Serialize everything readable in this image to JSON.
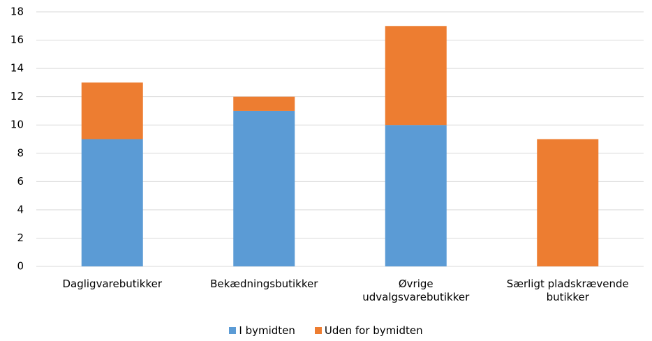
{
  "chart_data": {
    "type": "stacked_bar",
    "categories": [
      "Dagligvarebutikker",
      "Bekædningsbutikker",
      "Øvrige udvalgsvarebutikker",
      "Særligt pladskrævende butikker"
    ],
    "series": [
      {
        "name": "I bymidten",
        "color": "#5b9bd5",
        "values": [
          9,
          11,
          10,
          0
        ]
      },
      {
        "name": "Uden for bymidten",
        "color": "#ed7d31",
        "values": [
          4,
          1,
          7,
          9
        ]
      }
    ],
    "ylim": [
      0,
      18
    ],
    "yticks": [
      0,
      2,
      4,
      6,
      8,
      10,
      12,
      14,
      16,
      18
    ],
    "grid": true,
    "legend": "bottom"
  }
}
